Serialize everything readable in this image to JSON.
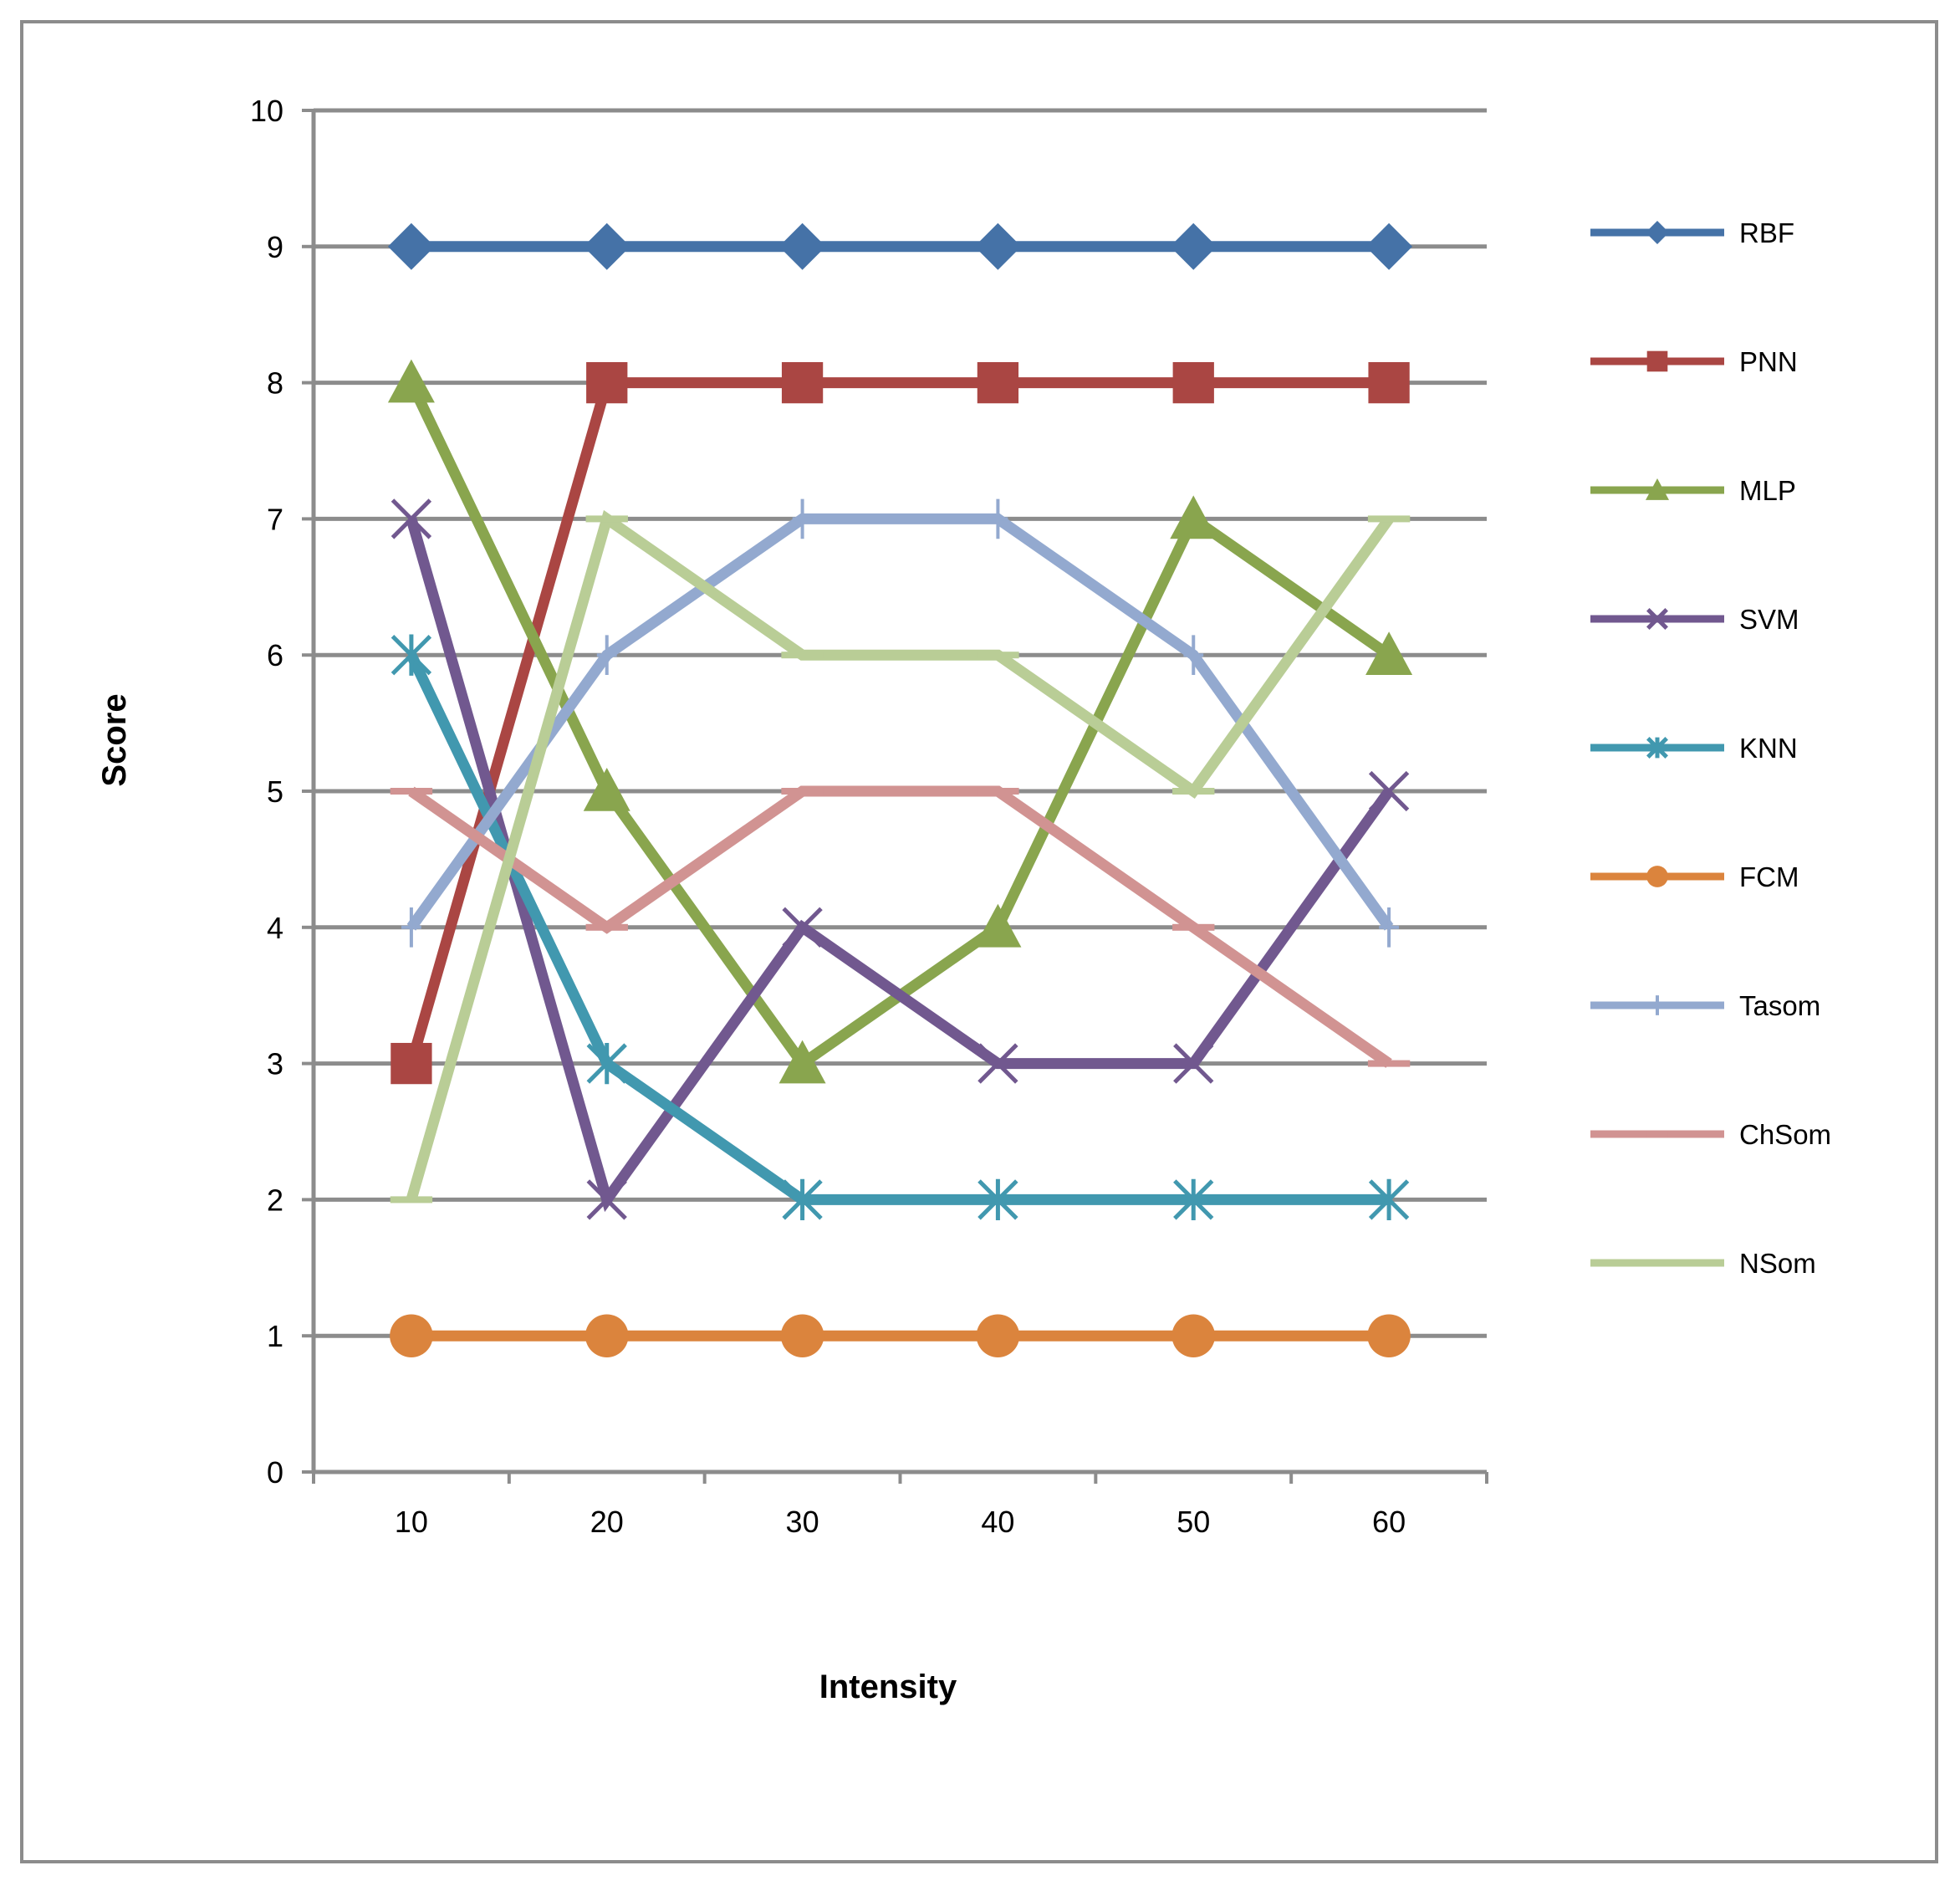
{
  "chart_data": {
    "type": "line",
    "title": "",
    "xlabel": "Intensity",
    "ylabel": "Score",
    "categories": [
      "10",
      "20",
      "30",
      "40",
      "50",
      "60"
    ],
    "ylim": [
      0,
      10
    ],
    "yticks": [
      "0",
      "1",
      "2",
      "3",
      "4",
      "5",
      "6",
      "7",
      "8",
      "9",
      "10"
    ],
    "grid": true,
    "legend_position": "right",
    "series": [
      {
        "name": "RBF",
        "values": [
          9,
          9,
          9,
          9,
          9,
          9
        ],
        "color": "#4572A7",
        "marker": "diamond"
      },
      {
        "name": "PNN",
        "values": [
          3,
          8,
          8,
          8,
          8,
          8
        ],
        "color": "#AA4643",
        "marker": "square"
      },
      {
        "name": "MLP",
        "values": [
          8,
          5,
          3,
          4,
          7,
          6
        ],
        "color": "#89A54E",
        "marker": "triangle"
      },
      {
        "name": "SVM",
        "values": [
          7,
          2,
          4,
          3,
          3,
          5
        ],
        "color": "#71588F",
        "marker": "x"
      },
      {
        "name": "KNN",
        "values": [
          6,
          3,
          2,
          2,
          2,
          2
        ],
        "color": "#4198AF",
        "marker": "asterisk"
      },
      {
        "name": "FCM",
        "values": [
          1,
          1,
          1,
          1,
          1,
          1
        ],
        "color": "#DB843D",
        "marker": "circle"
      },
      {
        "name": "Tasom",
        "values": [
          4,
          6,
          7,
          7,
          6,
          4
        ],
        "color": "#93A9CF",
        "marker": "plus"
      },
      {
        "name": "ChSom",
        "values": [
          5,
          4,
          5,
          5,
          4,
          3
        ],
        "color": "#D19392",
        "marker": "dash"
      },
      {
        "name": "NSom",
        "values": [
          2,
          7,
          6,
          6,
          5,
          7
        ],
        "color": "#B9CD96",
        "marker": "dash"
      }
    ]
  }
}
